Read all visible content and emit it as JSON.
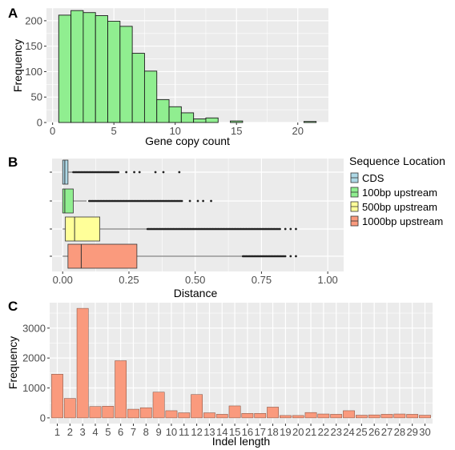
{
  "panels": {
    "a": {
      "letter": "A"
    },
    "b": {
      "letter": "B"
    },
    "c": {
      "letter": "C"
    }
  },
  "colors": {
    "panel_bg": "#ebebeb",
    "grid": "#ffffff",
    "hist_fill": "#90ee90",
    "bar_fill": "#fa9a7d",
    "cds": "#add8e6",
    "up100": "#90ee90",
    "up500": "#ffff99",
    "up1000": "#fa9a7d"
  },
  "chart_data": [
    {
      "type": "bar",
      "panel": "A",
      "xlabel": "Gene copy count",
      "ylabel": "Frequency",
      "x": [
        1,
        2,
        3,
        4,
        5,
        6,
        7,
        8,
        9,
        10,
        11,
        12,
        13,
        15,
        21
      ],
      "values": [
        211,
        220,
        216,
        210,
        199,
        189,
        136,
        101,
        45,
        31,
        19,
        7,
        9,
        3,
        2
      ],
      "xlim": [
        -0.5,
        22.5
      ],
      "ylim": [
        0,
        225
      ],
      "xticks": [
        0,
        5,
        10,
        15,
        20
      ],
      "yticks": [
        0,
        50,
        100,
        150,
        200
      ],
      "grid": true
    },
    {
      "type": "boxplot",
      "panel": "B",
      "xlabel": "Distance",
      "xlim": [
        -0.04,
        1.06
      ],
      "xticks": [
        "0.00",
        "0.25",
        "0.50",
        "0.75",
        "1.00"
      ],
      "legend_title": "Sequence Location",
      "legend_position": "right",
      "series": [
        {
          "name": "CDS",
          "color_key": "cds",
          "q1": 0.0,
          "median": 0.008,
          "q3": 0.02,
          "whisker_low": 0.0,
          "whisker_high": 0.04,
          "outliers_from": 0.04,
          "outliers_to": 0.21,
          "extra_outliers": [
            0.24,
            0.27,
            0.29,
            0.35,
            0.38,
            0.44
          ]
        },
        {
          "name": "100bp upstream",
          "color_key": "up100",
          "q1": 0.0,
          "median": 0.008,
          "q3": 0.04,
          "whisker_low": 0.0,
          "whisker_high": 0.09,
          "outliers_from": 0.1,
          "outliers_to": 0.45,
          "extra_outliers": [
            0.48,
            0.51,
            0.53,
            0.56
          ]
        },
        {
          "name": "500bp upstream",
          "color_key": "up500",
          "q1": 0.01,
          "median": 0.045,
          "q3": 0.14,
          "whisker_low": 0.0,
          "whisker_high": 0.32,
          "outliers_from": 0.32,
          "outliers_to": 0.82,
          "extra_outliers": [
            0.84,
            0.86,
            0.88
          ]
        },
        {
          "name": "1000bp upstream",
          "color_key": "up1000",
          "q1": 0.02,
          "median": 0.07,
          "q3": 0.28,
          "whisker_low": 0.0,
          "whisker_high": 0.68,
          "outliers_from": 0.68,
          "outliers_to": 0.84,
          "extra_outliers": [
            0.86,
            0.88
          ]
        }
      ]
    },
    {
      "type": "bar",
      "panel": "C",
      "xlabel": "Indel length",
      "ylabel": "Frequency",
      "categories": [
        "1",
        "2",
        "3",
        "4",
        "5",
        "6",
        "7",
        "8",
        "9",
        "10",
        "11",
        "12",
        "13",
        "14",
        "15",
        "16",
        "17",
        "18",
        "19",
        "20",
        "21",
        "22",
        "23",
        "24",
        "25",
        "26",
        "27",
        "28",
        "29",
        "30"
      ],
      "values": [
        1460,
        650,
        3660,
        380,
        390,
        1910,
        290,
        340,
        860,
        240,
        170,
        780,
        170,
        120,
        400,
        150,
        150,
        360,
        80,
        80,
        180,
        130,
        120,
        240,
        90,
        100,
        120,
        130,
        120,
        90
      ],
      "ylim": [
        -190,
        3850
      ],
      "yticks": [
        0,
        1000,
        2000,
        3000
      ],
      "grid": true
    }
  ]
}
